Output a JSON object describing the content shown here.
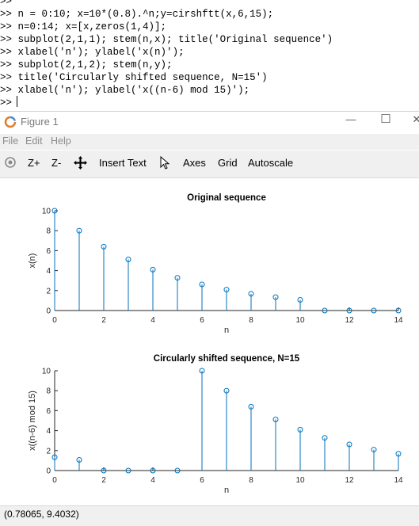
{
  "console": {
    "prompt": ">>",
    "lines": [
      "n = 0:10; x=10*(0.8).^n;y=cirshftt(x,6,15);",
      "n=0:14; x=[x,zeros(1,4)];",
      "subplot(2,1,1); stem(n,x); title('Original sequence')",
      "xlabel('n'); ylabel('x(n)');",
      "subplot(2,1,2); stem(n,y);",
      "title('Circularly shifted sequence, N=15')",
      "xlabel('n'); ylabel('x((n-6) mod 15)');"
    ]
  },
  "window": {
    "title": "Figure 1",
    "minimize": "—",
    "maximize": "☐",
    "close": "✕"
  },
  "menu": [
    "File",
    "Edit",
    "Help"
  ],
  "toolbar": {
    "zoom_in": "Z+",
    "zoom_out": "Z-",
    "insert_text": "Insert Text",
    "axes": "Axes",
    "grid": "Grid",
    "autoscale": "Autoscale"
  },
  "status": "(0.78065, 9.4032)",
  "colors": {
    "stem": "#0072bd",
    "axis": "#262626"
  },
  "chart_data": [
    {
      "type": "stem",
      "title": "Original sequence",
      "xlabel": "n",
      "ylabel": "x(n)",
      "xlim": [
        0,
        14
      ],
      "ylim": [
        0,
        10
      ],
      "xticks": [
        0,
        2,
        4,
        6,
        8,
        10,
        12,
        14
      ],
      "yticks": [
        0,
        2,
        4,
        6,
        8,
        10
      ],
      "x": [
        0,
        1,
        2,
        3,
        4,
        5,
        6,
        7,
        8,
        9,
        10,
        11,
        12,
        13,
        14
      ],
      "values": [
        10,
        8,
        6.4,
        5.12,
        4.096,
        3.2768,
        2.6214,
        2.0972,
        1.6777,
        1.3422,
        1.0737,
        0,
        0,
        0,
        0
      ]
    },
    {
      "type": "stem",
      "title": "Circularly shifted sequence, N=15",
      "xlabel": "n",
      "ylabel": "x((n-6) mod 15)",
      "xlim": [
        0,
        14
      ],
      "ylim": [
        0,
        10
      ],
      "xticks": [
        0,
        2,
        4,
        6,
        8,
        10,
        12,
        14
      ],
      "yticks": [
        0,
        2,
        4,
        6,
        8,
        10
      ],
      "x": [
        0,
        1,
        2,
        3,
        4,
        5,
        6,
        7,
        8,
        9,
        10,
        11,
        12,
        13,
        14
      ],
      "values": [
        1.3422,
        1.0737,
        0,
        0,
        0,
        0,
        10,
        8,
        6.4,
        5.12,
        4.096,
        3.2768,
        2.6214,
        2.0972,
        1.6777
      ]
    }
  ]
}
